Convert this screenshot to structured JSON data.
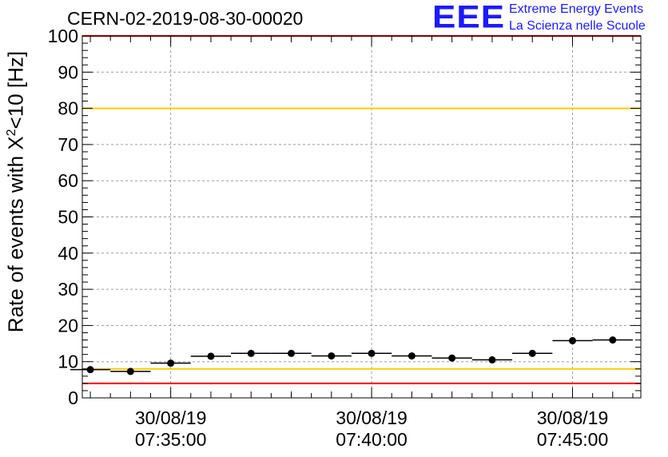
{
  "header": {
    "title": "CERN-02-2019-08-30-00020",
    "logo_text": "EEE",
    "logo_line1": "Extreme Energy Events",
    "logo_line2": "La Scienza nelle Scuole"
  },
  "chart_data": {
    "type": "scatter",
    "ylabel_prefix": "Rate of events with X",
    "ylabel_sup": "2",
    "ylabel_suffix": "<10 [Hz]",
    "ylim": [
      0,
      100
    ],
    "yticks": [
      0,
      10,
      20,
      30,
      40,
      50,
      60,
      70,
      80,
      90,
      100
    ],
    "xlim_min": [
      -2.2,
      11.7
    ],
    "xticks": [
      {
        "min": 0,
        "date": "30/08/19",
        "time": "07:35:00"
      },
      {
        "min": 5,
        "date": "30/08/19",
        "time": "07:40:00"
      },
      {
        "min": 10,
        "date": "30/08/19",
        "time": "07:45:00"
      }
    ],
    "grid": true,
    "reference_lines": [
      {
        "y": 100,
        "color": "#ff0000"
      },
      {
        "y": 80,
        "color": "#ffcc00"
      },
      {
        "y": 8,
        "color": "#ffcc00"
      },
      {
        "y": 4,
        "color": "#ff0000"
      }
    ],
    "series": [
      {
        "points": [
          {
            "x": -2.0,
            "y": 7.8,
            "xerr": 0.5
          },
          {
            "x": -1.0,
            "y": 7.3,
            "xerr": 0.5
          },
          {
            "x": 0.0,
            "y": 9.6,
            "xerr": 0.5
          },
          {
            "x": 1.0,
            "y": 11.5,
            "xerr": 0.5
          },
          {
            "x": 2.0,
            "y": 12.3,
            "xerr": 0.5
          },
          {
            "x": 3.0,
            "y": 12.3,
            "xerr": 0.5
          },
          {
            "x": 4.0,
            "y": 11.6,
            "xerr": 0.5
          },
          {
            "x": 5.0,
            "y": 12.3,
            "xerr": 0.5
          },
          {
            "x": 6.0,
            "y": 11.6,
            "xerr": 0.5
          },
          {
            "x": 7.0,
            "y": 11.0,
            "xerr": 0.5
          },
          {
            "x": 8.0,
            "y": 10.5,
            "xerr": 0.5
          },
          {
            "x": 9.0,
            "y": 12.3,
            "xerr": 0.5
          },
          {
            "x": 10.0,
            "y": 15.8,
            "xerr": 0.5
          },
          {
            "x": 11.0,
            "y": 16.0,
            "xerr": 0.5
          }
        ]
      }
    ]
  }
}
